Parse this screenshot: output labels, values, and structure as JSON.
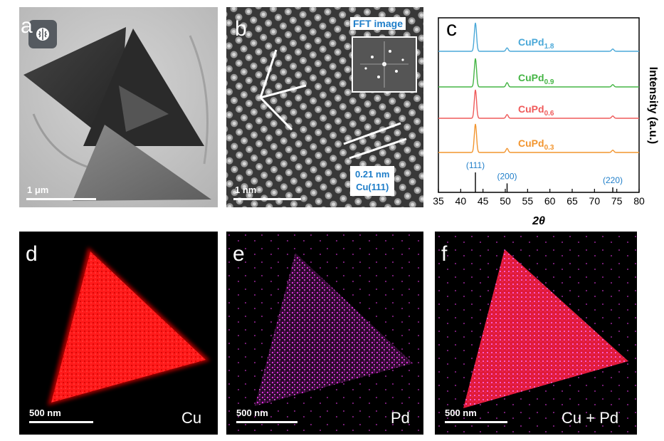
{
  "panels": {
    "a": {
      "label": "a",
      "scale": "1 μm"
    },
    "b": {
      "label": "b",
      "scale": "1 nm",
      "inset_label": "FFT image",
      "lattice_line1": "0.21 nm",
      "lattice_line2": "Cu(111)"
    },
    "c": {
      "label": "c"
    },
    "d": {
      "label": "d",
      "scale": "500 nm",
      "element": "Cu"
    },
    "e": {
      "label": "e",
      "scale": "500 nm",
      "element": "Pd"
    },
    "f": {
      "label": "f",
      "scale": "500 nm",
      "element": "Cu + Pd"
    }
  },
  "app_icon": "brain-icon",
  "colors": {
    "cu_map": "#ff1a1a",
    "pd_map": "#e02be0",
    "merge_map": "#ff2a6a",
    "annotation_blue": "#1f7ec9"
  },
  "chart_data": {
    "type": "line",
    "xlabel": "2θ",
    "ylabel": "Intensity (a.u.)",
    "xlim": [
      35,
      80
    ],
    "xticks": [
      35,
      40,
      45,
      50,
      55,
      60,
      65,
      70,
      75,
      80
    ],
    "series": [
      {
        "name": "CuPd",
        "sub": "1.8",
        "color": "#4aa8d8",
        "peaks": [
          {
            "x": 43.3,
            "h": 1.0
          },
          {
            "x": 50.4,
            "h": 0.12
          },
          {
            "x": 74.1,
            "h": 0.08
          }
        ]
      },
      {
        "name": "CuPd",
        "sub": "0.9",
        "color": "#45b545",
        "peaks": [
          {
            "x": 43.3,
            "h": 1.0
          },
          {
            "x": 50.4,
            "h": 0.15
          },
          {
            "x": 74.1,
            "h": 0.08
          }
        ]
      },
      {
        "name": "CuPd",
        "sub": "0.6",
        "color": "#ef5a5a",
        "peaks": [
          {
            "x": 43.3,
            "h": 1.0
          },
          {
            "x": 50.4,
            "h": 0.13
          },
          {
            "x": 74.1,
            "h": 0.08
          }
        ]
      },
      {
        "name": "CuPd",
        "sub": "0.3",
        "color": "#f2952f",
        "peaks": [
          {
            "x": 43.3,
            "h": 1.0
          },
          {
            "x": 50.4,
            "h": 0.14
          },
          {
            "x": 74.1,
            "h": 0.08
          }
        ]
      }
    ],
    "reference": [
      {
        "x": 43.3,
        "label": "(111)",
        "h": 1.0
      },
      {
        "x": 50.4,
        "label": "(200)",
        "h": 0.45
      },
      {
        "x": 74.1,
        "label": "(220)",
        "h": 0.25
      }
    ]
  }
}
